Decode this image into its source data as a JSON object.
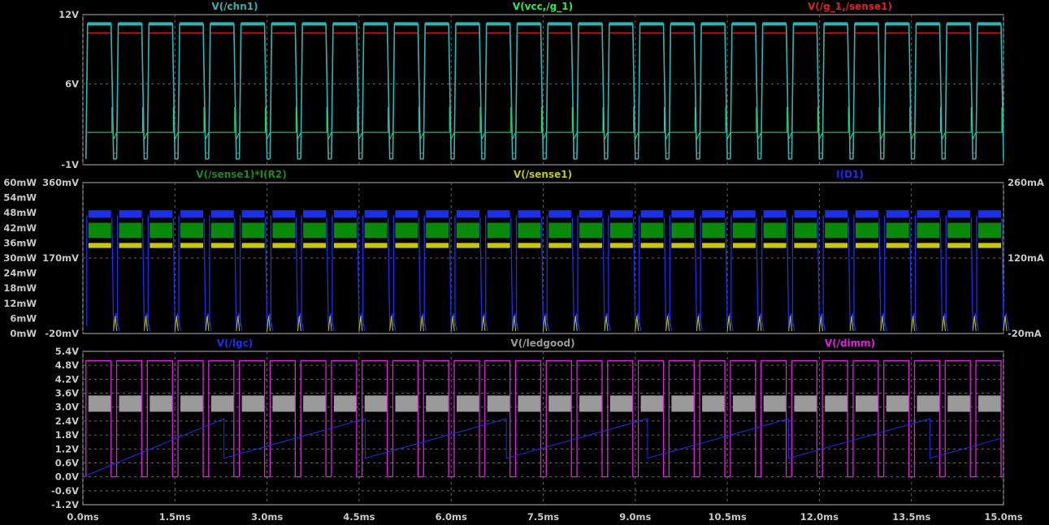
{
  "chart_data": [
    {
      "type": "line",
      "pane": "top",
      "xlim": [
        0,
        15
      ],
      "left_axis": {
        "ylim": [
          -1,
          12
        ],
        "ticks": [
          "12V",
          "6V",
          "-1V"
        ],
        "tick_values": [
          12,
          6,
          -1
        ]
      },
      "series": [
        {
          "name": "V(/chn1)",
          "color": "#2ab5b5",
          "high": 11.2,
          "low": -0.5,
          "period_ms": 0.5,
          "duty": 0.82
        },
        {
          "name": "V(vcc,/g_1)",
          "color": "#22ee55",
          "low": 1.8,
          "spike": 4.0,
          "period_ms": 0.5
        },
        {
          "name": "V(/g_1,/sense1)",
          "color": "#e02020",
          "high": 10.4,
          "low": 0.0,
          "period_ms": 0.5,
          "duty": 0.82
        }
      ]
    },
    {
      "type": "line",
      "pane": "middle",
      "xlim": [
        0,
        15
      ],
      "left_axis_1": {
        "ticks": [
          "60mW",
          "54mW",
          "48mW",
          "42mW",
          "36mW",
          "30mW",
          "24mW",
          "18mW",
          "12mW",
          "6mW",
          "0mW"
        ],
        "tick_values": [
          60,
          54,
          48,
          42,
          36,
          30,
          24,
          18,
          12,
          6,
          0
        ]
      },
      "left_axis_2": {
        "ticks": [
          "360mV",
          "170mV",
          "-20mV"
        ],
        "tick_values": [
          360,
          170,
          -20
        ]
      },
      "right_axis": {
        "ticks": [
          "260mA",
          "120mA",
          "-20mA"
        ],
        "tick_values": [
          260,
          120,
          -20
        ]
      },
      "series": [
        {
          "name": "V(/sense1)*I(R2)",
          "color": "#0a8a0a",
          "band_mw": [
            38,
            44
          ],
          "period_ms": 0.5
        },
        {
          "name": "V(/sense1)",
          "color": "#c8c800",
          "band_mw": [
            34,
            36
          ],
          "period_ms": 0.5
        },
        {
          "name": "I(D1)",
          "color": "#1a2ef0",
          "band_mw": [
            46,
            49
          ],
          "period_ms": 0.5
        }
      ]
    },
    {
      "type": "line",
      "pane": "bottom",
      "xlim": [
        0,
        15
      ],
      "xlabel_ticks": [
        "0.0ms",
        "1.5ms",
        "3.0ms",
        "4.5ms",
        "6.0ms",
        "7.5ms",
        "9.0ms",
        "10.5ms",
        "12.0ms",
        "13.5ms",
        "15.0ms"
      ],
      "x_tick_values": [
        0,
        1.5,
        3,
        4.5,
        6,
        7.5,
        9,
        10.5,
        12,
        13.5,
        15
      ],
      "left_axis": {
        "ticks": [
          "5.4V",
          "4.8V",
          "4.2V",
          "3.6V",
          "3.0V",
          "2.4V",
          "1.8V",
          "1.2V",
          "0.6V",
          "0.0V",
          "-0.6V",
          "-1.2V"
        ],
        "tick_values": [
          5.4,
          4.8,
          4.2,
          3.6,
          3.0,
          2.4,
          1.8,
          1.2,
          0.6,
          0.0,
          -0.6,
          -1.2
        ],
        "ylim": [
          -1.2,
          5.4
        ]
      },
      "series": [
        {
          "name": "V(/lgc)",
          "color": "#1a2ef0",
          "sawtooth_ms": 2.3,
          "max": 2.5,
          "min": 0.8
        },
        {
          "name": "V(/ledgood)",
          "color": "#9a9a9a",
          "band": [
            2.8,
            3.5
          ]
        },
        {
          "name": "V(/dimm)",
          "color": "#e020e0",
          "high": 5.0,
          "low": 0.0,
          "period_ms": 0.5,
          "duty": 0.82
        }
      ]
    }
  ]
}
